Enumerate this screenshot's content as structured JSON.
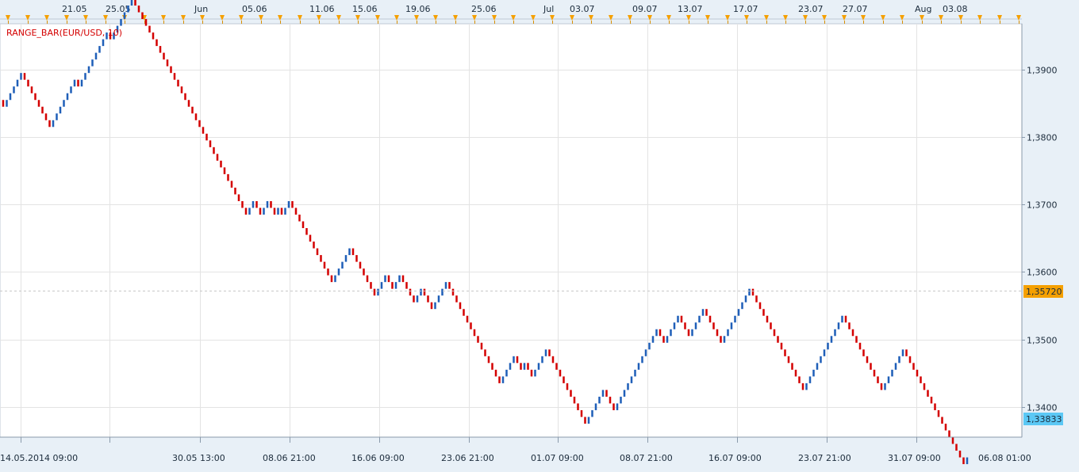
{
  "chart_title": "RANGE_BAR(EUR/USD, 10)",
  "colors": {
    "background": "#ffffff",
    "frame": "#e8f0f7",
    "grid": "#e3e3e3",
    "up_bar": "#1f5fb8",
    "down_bar": "#d40000",
    "marker": "#f5a000",
    "current_price_bg": "#f5a000",
    "last_price_bg": "#5bc8f5"
  },
  "top_date_labels": [
    "21.05",
    "25.05",
    "Jun",
    "05.06",
    "11.06",
    "15.06",
    "19.06",
    "25.06",
    "Jul",
    "03.07",
    "09.07",
    "13.07",
    "17.07",
    "23.07",
    "27.07",
    "Aug",
    "03.08"
  ],
  "bottom_date_labels": [
    "14.05.2014 09:00",
    "30.05 13:00",
    "08.06 21:00",
    "16.06 09:00",
    "23.06 21:00",
    "01.07 09:00",
    "08.07 21:00",
    "16.07 09:00",
    "23.07 21:00",
    "31.07 09:00",
    "06.08 01:00"
  ],
  "price_labels": [
    "1,3900",
    "1,3800",
    "1,3700",
    "1,3600",
    "1,3500",
    "1,3400"
  ],
  "current_price_label": "1,35720",
  "last_price_label": "1,33833",
  "chart_data": {
    "type": "bar",
    "title": "RANGE_BAR(EUR/USD, 10)",
    "ylim": [
      1.3355,
      1.3968
    ],
    "yticks": [
      1.39,
      1.38,
      1.37,
      1.36,
      1.35,
      1.34
    ],
    "current_price": 1.3572,
    "last_price": 1.33833,
    "x_tick_labels_bottom": [
      "14.05.2014 09:00",
      "30.05 13:00",
      "08.06 21:00",
      "16.06 09:00",
      "23.06 21:00",
      "01.07 09:00",
      "08.07 21:00",
      "16.07 09:00",
      "23.07 21:00",
      "31.07 09:00",
      "06.08 01:00"
    ],
    "x_tick_labels_top": [
      "21.05",
      "25.05",
      "Jun",
      "05.06",
      "11.06",
      "15.06",
      "19.06",
      "25.06",
      "Jul",
      "03.07",
      "09.07",
      "13.07",
      "17.07",
      "23.07",
      "27.07",
      "Aug",
      "03.08"
    ],
    "bar_range": 0.001,
    "bar_base": 1.3855,
    "bar_directions": [
      -1,
      1,
      1,
      1,
      1,
      1,
      -1,
      -1,
      -1,
      -1,
      -1,
      -1,
      -1,
      -1,
      1,
      1,
      1,
      1,
      1,
      1,
      1,
      -1,
      1,
      1,
      1,
      1,
      1,
      1,
      1,
      1,
      -1,
      1,
      1,
      1,
      1,
      1,
      1,
      -1,
      -1,
      -1,
      -1,
      -1,
      -1,
      -1,
      -1,
      -1,
      -1,
      -1,
      -1,
      -1,
      -1,
      -1,
      -1,
      -1,
      -1,
      -1,
      -1,
      -1,
      -1,
      -1,
      -1,
      -1,
      -1,
      -1,
      -1,
      -1,
      -1,
      -1,
      -1,
      1,
      1,
      -1,
      -1,
      1,
      1,
      -1,
      -1,
      1,
      -1,
      1,
      1,
      -1,
      -1,
      -1,
      -1,
      -1,
      -1,
      -1,
      -1,
      -1,
      -1,
      -1,
      -1,
      1,
      1,
      1,
      1,
      1,
      -1,
      -1,
      -1,
      -1,
      -1,
      -1,
      -1,
      1,
      1,
      1,
      -1,
      -1,
      1,
      1,
      -1,
      -1,
      -1,
      -1,
      1,
      1,
      -1,
      -1,
      -1,
      1,
      1,
      1,
      1,
      -1,
      -1,
      -1,
      -1,
      -1,
      -1,
      -1,
      -1,
      -1,
      -1,
      -1,
      -1,
      -1,
      -1,
      -1,
      1,
      1,
      1,
      1,
      -1,
      -1,
      1,
      -1,
      -1,
      1,
      1,
      1,
      1,
      -1,
      -1,
      -1,
      -1,
      -1,
      -1,
      -1,
      -1,
      -1,
      -1,
      -1,
      1,
      1,
      1,
      1,
      1,
      -1,
      -1,
      -1,
      1,
      1,
      1,
      1,
      1,
      1,
      1,
      1,
      1,
      1,
      1,
      1,
      -1,
      -1,
      1,
      1,
      1,
      1,
      -1,
      -1,
      -1,
      1,
      1,
      1,
      1,
      -1,
      -1,
      -1,
      -1,
      -1,
      1,
      1,
      1,
      1,
      1,
      1,
      1,
      1,
      -1,
      -1,
      -1,
      -1,
      -1,
      -1,
      -1,
      -1,
      -1,
      -1,
      -1,
      -1,
      -1,
      -1,
      -1,
      1,
      1,
      1,
      1,
      1,
      1,
      1,
      1,
      1,
      1,
      1,
      -1,
      -1,
      -1,
      -1,
      -1,
      -1,
      -1,
      -1,
      -1,
      -1,
      -1,
      1,
      1,
      1,
      1,
      1,
      1,
      -1,
      -1,
      -1,
      -1,
      -1,
      -1,
      -1,
      -1,
      -1,
      -1,
      -1,
      -1,
      -1,
      -1,
      -1,
      -1,
      -1,
      1
    ]
  }
}
